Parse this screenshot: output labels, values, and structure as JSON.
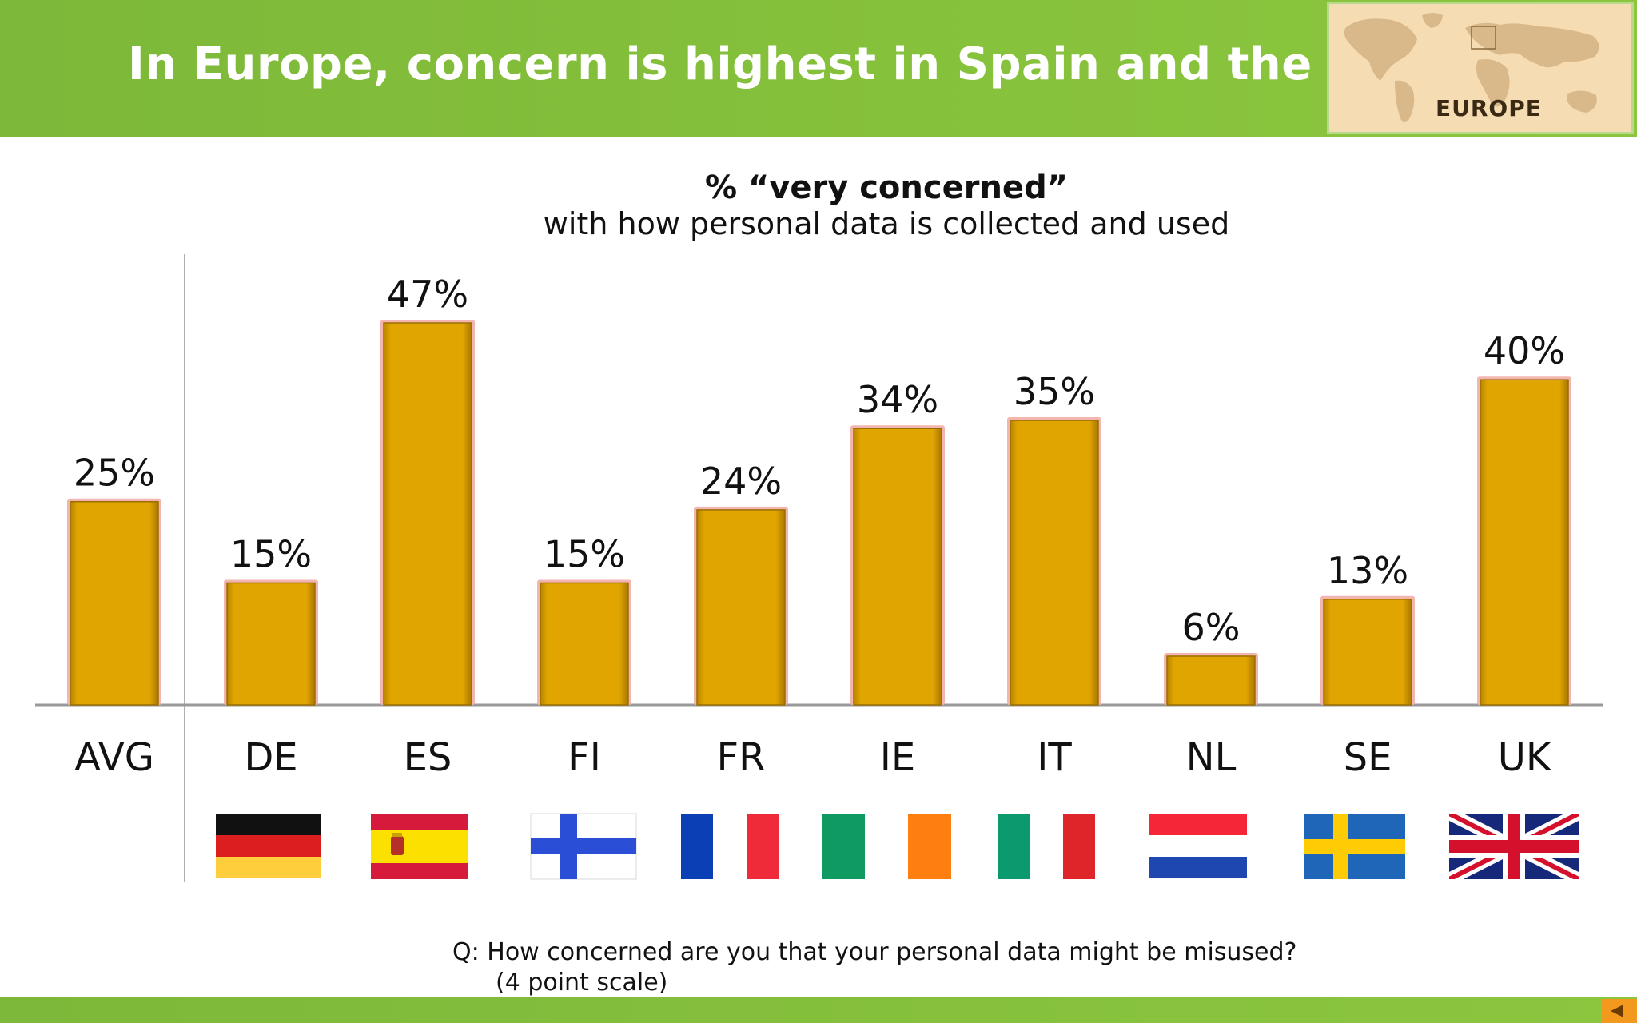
{
  "header": {
    "title": "In Europe, concern is highest in Spain and the UK",
    "map_label": "EUROPE"
  },
  "chart_data": {
    "type": "bar",
    "title": "% “very concerned”",
    "subtitle": "with how personal data is collected and used",
    "categories": [
      "AVG",
      "DE",
      "ES",
      "FI",
      "FR",
      "IE",
      "IT",
      "NL",
      "SE",
      "UK"
    ],
    "values": [
      25,
      15,
      47,
      15,
      24,
      34,
      35,
      6,
      13,
      40
    ],
    "value_labels": [
      "25%",
      "15%",
      "47%",
      "15%",
      "24%",
      "34%",
      "35%",
      "6%",
      "13%",
      "40%"
    ],
    "ylim": [
      0,
      47
    ],
    "grid": false,
    "legend": "none",
    "bar_color": "#e0a500",
    "flags": [
      "",
      "germany-flag",
      "spain-flag",
      "finland-flag",
      "france-flag",
      "ireland-flag",
      "italy-flag",
      "netherlands-flag",
      "sweden-flag",
      "uk-flag"
    ]
  },
  "footer": {
    "question": "Q:  How concerned are you that your personal data might be misused?",
    "scale_note": "(4 point scale)"
  },
  "colors": {
    "header_green": "#86c13b",
    "bar": "#e0a500",
    "bar_glow": "#f2b5b0",
    "nav_arrow": "#f39a1e"
  }
}
